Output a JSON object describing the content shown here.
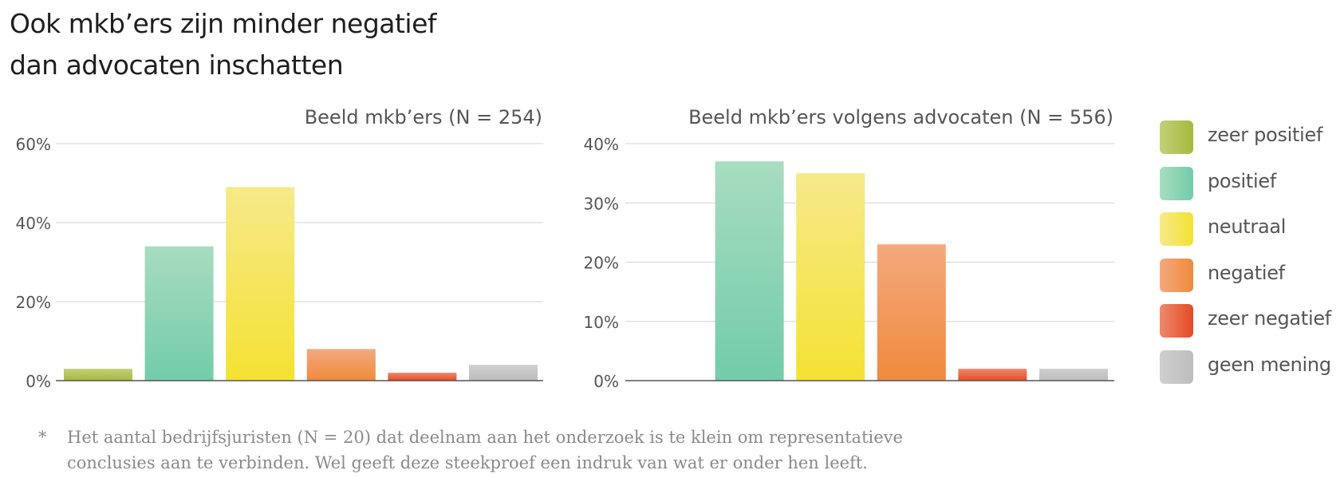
{
  "title": {
    "line1": "Ook mkb’ers zijn minder negatief",
    "line2": "dan advocaten inschatten"
  },
  "legend": [
    {
      "label": "zeer positief",
      "color_top": "#c3d07a",
      "color_bottom": "#a6b93c"
    },
    {
      "label": "positief",
      "color_top": "#a8dcc0",
      "color_bottom": "#72ccaa"
    },
    {
      "label": "neutraal",
      "color_top": "#f6e98a",
      "color_bottom": "#f4e232"
    },
    {
      "label": "negatief",
      "color_top": "#f3a97e",
      "color_bottom": "#f08a3c"
    },
    {
      "label": "zeer negatief",
      "color_top": "#ec8a6e",
      "color_bottom": "#e64a24"
    },
    {
      "label": "geen mening",
      "color_top": "#cfcfcf",
      "color_bottom": "#bdbdbd"
    }
  ],
  "chart_data": [
    {
      "type": "bar",
      "title": "Beeld mkb’ers (N = 254)",
      "categories": [
        "zeer positief",
        "positief",
        "neutraal",
        "negatief",
        "zeer negatief",
        "geen mening"
      ],
      "values": [
        3,
        34,
        49,
        8,
        2,
        4
      ],
      "ylim": [
        0,
        60
      ],
      "yticks": [
        0,
        20,
        40,
        60
      ],
      "ytick_labels": [
        "0%",
        "20%",
        "40%",
        "60%"
      ],
      "grid": true
    },
    {
      "type": "bar",
      "title": "Beeld mkb’ers volgens advocaten (N = 556)",
      "categories": [
        "zeer positief",
        "positief",
        "neutraal",
        "negatief",
        "zeer negatief",
        "geen mening"
      ],
      "values": [
        0,
        37,
        35,
        23,
        2,
        2
      ],
      "ylim": [
        0,
        40
      ],
      "yticks": [
        0,
        10,
        20,
        30,
        40
      ],
      "ytick_labels": [
        "0%",
        "10%",
        "20%",
        "30%",
        "40%"
      ],
      "grid": true
    }
  ],
  "footnote": {
    "marker": "*",
    "line1": "Het aantal bedrijfsjuristen (N = 20) dat deelnam aan het onderzoek is te klein om representatieve",
    "line2": "conclusies aan te verbinden. Wel geeft deze steekproef een indruk van wat er onder hen leeft."
  }
}
